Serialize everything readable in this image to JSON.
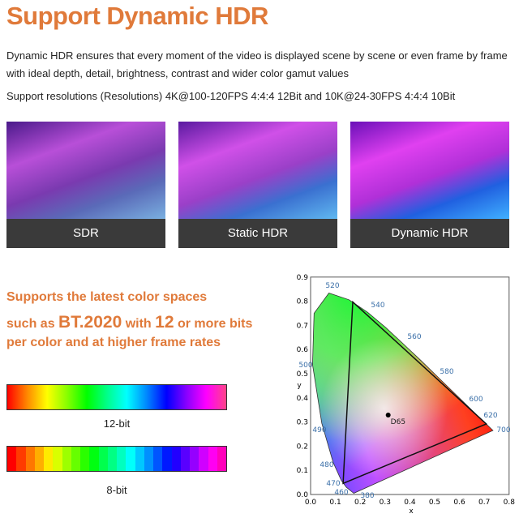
{
  "header": {
    "title": "Support Dynamic HDR"
  },
  "intro": {
    "paragraphs": [
      "Dynamic HDR ensures that every moment of the video is displayed scene by scene or even frame by frame with ideal depth, detail, brightness, contrast and wider color gamut values",
      "Support resolutions (Resolutions) 4K@100-120FPS 4:4:4 12Bit and 10K@24-30FPS 4:4:4 10Bit"
    ]
  },
  "images": [
    {
      "label": "SDR"
    },
    {
      "label": "Static HDR"
    },
    {
      "label": "Dynamic HDR"
    }
  ],
  "color_spaces": {
    "lines": [
      [
        "Supports the latest color spaces"
      ],
      [
        "such as ",
        "BT.2020",
        " with ",
        "12",
        " or more bits"
      ],
      [
        "per color and at higher frame rates"
      ]
    ]
  },
  "bars": [
    {
      "label": "12-bit"
    },
    {
      "label": "8-bit"
    }
  ],
  "cie": {
    "x_ticks": [
      "0.0",
      "0.1",
      "0.2",
      "0.3",
      "0.4",
      "0.5",
      "0.6",
      "0.7",
      "0.8"
    ],
    "y_ticks": [
      "0.0",
      "0.1",
      "0.2",
      "0.3",
      "0.4",
      "0.5",
      "0.6",
      "0.7",
      "0.8",
      "0.9"
    ],
    "x_label": "x",
    "y_label": "y",
    "wavelengths": [
      "520",
      "540",
      "560",
      "580",
      "600",
      "620",
      "700",
      "500",
      "490",
      "480",
      "470",
      "460",
      "380"
    ],
    "white_point": "D65"
  }
}
